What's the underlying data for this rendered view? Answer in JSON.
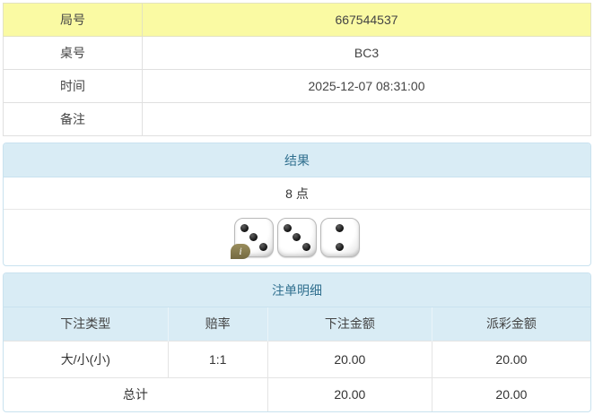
{
  "info_table": {
    "rows": [
      {
        "label": "局号",
        "value": "667544537"
      },
      {
        "label": "桌号",
        "value": "BC3"
      },
      {
        "label": "时间",
        "value": "2025-12-07 08:31:00"
      },
      {
        "label": "备注",
        "value": ""
      }
    ]
  },
  "result_panel": {
    "title": "结果",
    "points": "8 点",
    "dice": [
      3,
      3,
      2
    ],
    "info_badge_label": "i"
  },
  "bets_panel": {
    "title": "注单明细",
    "columns": [
      "下注类型",
      "赔率",
      "下注金额",
      "派彩金额"
    ],
    "rows": [
      {
        "type": "大/小(小)",
        "odds": "1:1",
        "bet_amount": "20.00",
        "payout_amount": "20.00"
      }
    ],
    "total": {
      "label": "总计",
      "bet_amount": "20.00",
      "payout_amount": "20.00"
    }
  },
  "colors": {
    "highlight_yellow": "#fafaa3",
    "panel_header_bg": "#d9ecf5",
    "panel_header_text": "#31708f",
    "odds_red": "#e04b4b"
  }
}
